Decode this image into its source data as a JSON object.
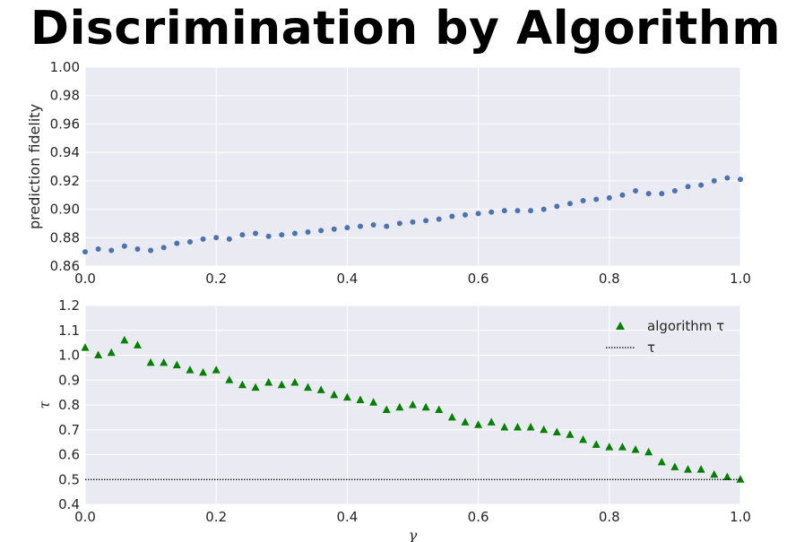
{
  "title": "Discrimination by Algorithm",
  "colors": {
    "background": "#eaeaf2",
    "grid": "#ffffff",
    "series_blue": "#4c72b0",
    "series_green": "#008000",
    "line": "#000000"
  },
  "chart_data": [
    {
      "type": "scatter",
      "id": "fidelity",
      "xlabel": "",
      "ylabel": "prediction fidelity",
      "xlim": [
        0.0,
        1.0
      ],
      "ylim": [
        0.86,
        1.0
      ],
      "xticks": [
        "0.0",
        "0.2",
        "0.4",
        "0.6",
        "0.8",
        "1.0"
      ],
      "yticks": [
        "0.86",
        "0.88",
        "0.90",
        "0.92",
        "0.94",
        "0.96",
        "0.98",
        "1.00"
      ],
      "grid": true,
      "series": [
        {
          "marker": "circle",
          "x": [
            0.0,
            0.02,
            0.04,
            0.06,
            0.08,
            0.1,
            0.12,
            0.14,
            0.16,
            0.18,
            0.2,
            0.22,
            0.24,
            0.26,
            0.28,
            0.3,
            0.32,
            0.34,
            0.36,
            0.38,
            0.4,
            0.42,
            0.44,
            0.46,
            0.48,
            0.5,
            0.52,
            0.54,
            0.56,
            0.58,
            0.6,
            0.62,
            0.64,
            0.66,
            0.68,
            0.7,
            0.72,
            0.74,
            0.76,
            0.78,
            0.8,
            0.82,
            0.84,
            0.86,
            0.88,
            0.9,
            0.92,
            0.94,
            0.96,
            0.98,
            1.0
          ],
          "y": [
            0.87,
            0.872,
            0.871,
            0.874,
            0.872,
            0.871,
            0.873,
            0.876,
            0.877,
            0.879,
            0.88,
            0.879,
            0.882,
            0.883,
            0.881,
            0.882,
            0.883,
            0.884,
            0.885,
            0.886,
            0.887,
            0.888,
            0.889,
            0.888,
            0.89,
            0.891,
            0.892,
            0.893,
            0.895,
            0.896,
            0.897,
            0.898,
            0.899,
            0.899,
            0.899,
            0.9,
            0.902,
            0.904,
            0.906,
            0.907,
            0.908,
            0.91,
            0.913,
            0.911,
            0.911,
            0.913,
            0.916,
            0.917,
            0.92,
            0.922,
            0.921
          ]
        }
      ]
    },
    {
      "type": "scatter",
      "id": "tau",
      "xlabel": "γ",
      "ylabel": "τ",
      "xlim": [
        0.0,
        1.0
      ],
      "ylim": [
        0.4,
        1.2
      ],
      "xticks": [
        "0.0",
        "0.2",
        "0.4",
        "0.6",
        "0.8",
        "1.0"
      ],
      "yticks": [
        "0.4",
        "0.5",
        "0.6",
        "0.7",
        "0.8",
        "0.9",
        "1.0",
        "1.1",
        "1.2"
      ],
      "grid": true,
      "legend_position": "top-right",
      "series": [
        {
          "name": "algorithm τ",
          "marker": "triangle",
          "x": [
            0.0,
            0.02,
            0.04,
            0.06,
            0.08,
            0.1,
            0.12,
            0.14,
            0.16,
            0.18,
            0.2,
            0.22,
            0.24,
            0.26,
            0.28,
            0.3,
            0.32,
            0.34,
            0.36,
            0.38,
            0.4,
            0.42,
            0.44,
            0.46,
            0.48,
            0.5,
            0.52,
            0.54,
            0.56,
            0.58,
            0.6,
            0.62,
            0.64,
            0.66,
            0.68,
            0.7,
            0.72,
            0.74,
            0.76,
            0.78,
            0.8,
            0.82,
            0.84,
            0.86,
            0.88,
            0.9,
            0.92,
            0.94,
            0.96,
            0.98,
            1.0
          ],
          "y": [
            1.03,
            1.0,
            1.01,
            1.06,
            1.04,
            0.97,
            0.97,
            0.96,
            0.94,
            0.93,
            0.94,
            0.9,
            0.88,
            0.87,
            0.89,
            0.88,
            0.89,
            0.87,
            0.86,
            0.84,
            0.83,
            0.82,
            0.81,
            0.78,
            0.79,
            0.8,
            0.79,
            0.78,
            0.75,
            0.73,
            0.72,
            0.73,
            0.71,
            0.71,
            0.71,
            0.7,
            0.69,
            0.68,
            0.66,
            0.64,
            0.63,
            0.63,
            0.62,
            0.61,
            0.57,
            0.55,
            0.54,
            0.54,
            0.52,
            0.51,
            0.5
          ]
        },
        {
          "name": "τ",
          "marker": "dotted-line",
          "x": [
            0.0,
            1.0
          ],
          "y": [
            0.5,
            0.5
          ]
        }
      ]
    }
  ]
}
